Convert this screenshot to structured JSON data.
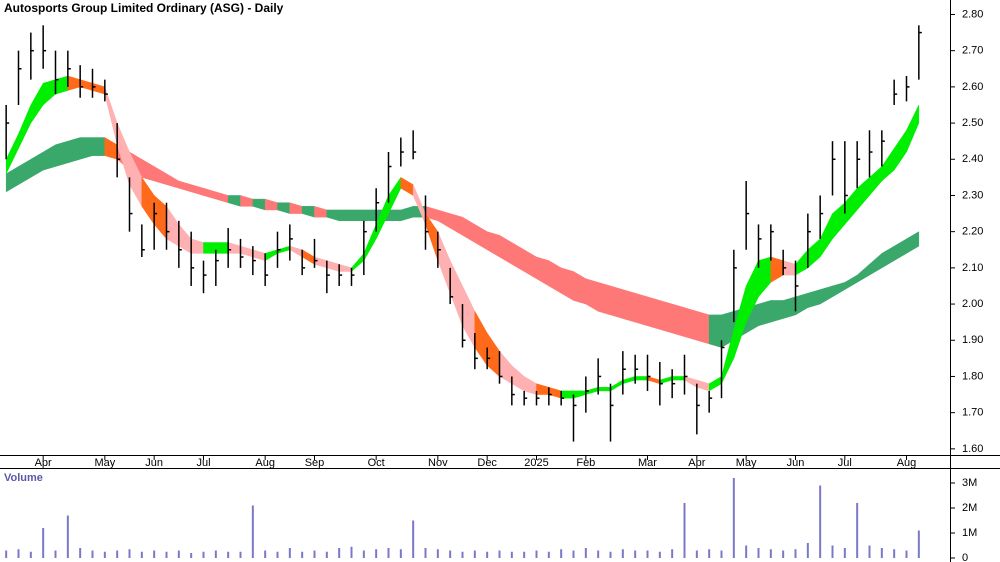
{
  "chart_data": [
    {
      "type": "ohlc",
      "title": "Autosports Group Limited Ordinary (ASG) - Daily",
      "categories": [
        null,
        null,
        null,
        "Apr",
        null,
        null,
        null,
        null,
        "May",
        null,
        null,
        null,
        "Jun",
        null,
        null,
        null,
        "Jul",
        null,
        null,
        null,
        null,
        "Aug",
        null,
        null,
        null,
        "Sep",
        null,
        null,
        null,
        null,
        "Oct",
        null,
        null,
        null,
        null,
        "Nov",
        null,
        null,
        null,
        "Dec",
        null,
        null,
        null,
        "2025",
        null,
        null,
        null,
        "Feb",
        null,
        null,
        null,
        null,
        "Mar",
        null,
        null,
        null,
        "Apr",
        null,
        null,
        null,
        "May",
        null,
        null,
        null,
        "Jun",
        null,
        null,
        null,
        "Jul",
        null,
        null,
        null,
        null,
        "Aug",
        null
      ],
      "high": [
        2.55,
        2.7,
        2.75,
        2.77,
        2.7,
        2.7,
        2.66,
        2.65,
        2.62,
        2.5,
        2.35,
        2.22,
        2.28,
        2.28,
        2.23,
        2.2,
        2.12,
        2.15,
        2.21,
        2.18,
        2.16,
        2.14,
        2.2,
        2.22,
        2.15,
        2.18,
        2.12,
        2.11,
        2.1,
        2.23,
        2.32,
        2.42,
        2.46,
        2.48,
        2.3,
        2.2,
        2.1,
        2.0,
        1.92,
        1.88,
        1.87,
        1.8,
        1.76,
        1.76,
        1.77,
        1.76,
        1.75,
        1.8,
        1.85,
        1.78,
        1.87,
        1.86,
        1.86,
        1.84,
        1.82,
        1.86,
        1.78,
        1.76,
        1.9,
        2.15,
        2.34,
        2.22,
        2.22,
        2.15,
        2.12,
        2.25,
        2.3,
        2.45,
        2.45,
        2.45,
        2.48,
        2.48,
        2.62,
        2.63,
        2.77
      ],
      "low": [
        2.4,
        2.55,
        2.62,
        2.65,
        2.58,
        2.6,
        2.57,
        2.57,
        2.56,
        2.35,
        2.2,
        2.13,
        2.15,
        2.15,
        2.1,
        2.05,
        2.03,
        2.05,
        2.1,
        2.1,
        2.08,
        2.05,
        2.1,
        2.12,
        2.08,
        2.1,
        2.03,
        2.05,
        2.05,
        2.08,
        2.2,
        2.28,
        2.38,
        2.4,
        2.15,
        2.1,
        2.0,
        1.88,
        1.82,
        1.82,
        1.78,
        1.72,
        1.72,
        1.72,
        1.72,
        1.72,
        1.62,
        1.7,
        1.75,
        1.62,
        1.75,
        1.78,
        1.76,
        1.72,
        1.74,
        1.75,
        1.64,
        1.7,
        1.74,
        1.95,
        2.15,
        2.1,
        2.12,
        2.08,
        1.98,
        2.1,
        2.18,
        2.3,
        2.25,
        2.32,
        2.35,
        2.38,
        2.55,
        2.56,
        2.62
      ],
      "close": [
        2.5,
        2.65,
        2.7,
        2.7,
        2.62,
        2.65,
        2.6,
        2.6,
        2.58,
        2.4,
        2.25,
        2.15,
        2.25,
        2.2,
        2.15,
        2.1,
        2.08,
        2.12,
        2.15,
        2.13,
        2.12,
        2.08,
        2.15,
        2.18,
        2.1,
        2.12,
        2.08,
        2.08,
        2.08,
        2.2,
        2.28,
        2.38,
        2.42,
        2.42,
        2.2,
        2.15,
        2.02,
        1.9,
        1.85,
        1.85,
        1.8,
        1.75,
        1.74,
        1.74,
        1.75,
        1.74,
        1.72,
        1.76,
        1.8,
        1.72,
        1.82,
        1.82,
        1.8,
        1.78,
        1.78,
        1.8,
        1.72,
        1.74,
        1.88,
        2.1,
        2.25,
        2.18,
        2.2,
        2.1,
        2.05,
        2.2,
        2.25,
        2.4,
        2.3,
        2.4,
        2.42,
        2.45,
        2.58,
        2.6,
        2.75
      ],
      "short_band": {
        "upper": [
          2.4,
          2.47,
          2.55,
          2.61,
          2.62,
          2.63,
          2.62,
          2.61,
          2.6,
          2.5,
          2.42,
          2.35,
          2.3,
          2.27,
          2.22,
          2.18,
          2.17,
          2.17,
          2.17,
          2.16,
          2.15,
          2.14,
          2.15,
          2.16,
          2.15,
          2.13,
          2.12,
          2.11,
          2.1,
          2.14,
          2.22,
          2.3,
          2.35,
          2.33,
          2.25,
          2.2,
          2.12,
          2.05,
          1.98,
          1.92,
          1.87,
          1.83,
          1.8,
          1.78,
          1.77,
          1.76,
          1.76,
          1.76,
          1.77,
          1.77,
          1.79,
          1.8,
          1.8,
          1.79,
          1.8,
          1.8,
          1.79,
          1.78,
          1.8,
          1.93,
          2.05,
          2.12,
          2.13,
          2.12,
          2.11,
          2.15,
          2.18,
          2.25,
          2.28,
          2.32,
          2.35,
          2.38,
          2.43,
          2.48,
          2.55
        ],
        "lower": [
          2.36,
          2.43,
          2.5,
          2.55,
          2.58,
          2.59,
          2.6,
          2.59,
          2.58,
          2.44,
          2.33,
          2.27,
          2.22,
          2.18,
          2.16,
          2.14,
          2.14,
          2.14,
          2.14,
          2.14,
          2.13,
          2.12,
          2.14,
          2.15,
          2.13,
          2.11,
          2.1,
          2.09,
          2.09,
          2.12,
          2.18,
          2.25,
          2.32,
          2.3,
          2.22,
          2.12,
          2.03,
          1.94,
          1.88,
          1.83,
          1.8,
          1.78,
          1.76,
          1.75,
          1.75,
          1.74,
          1.74,
          1.75,
          1.76,
          1.76,
          1.78,
          1.79,
          1.79,
          1.78,
          1.79,
          1.79,
          1.77,
          1.76,
          1.78,
          1.85,
          1.95,
          2.02,
          2.06,
          2.08,
          2.08,
          2.1,
          2.13,
          2.18,
          2.22,
          2.26,
          2.3,
          2.34,
          2.37,
          2.42,
          2.5
        ]
      },
      "long_band": {
        "upper": [
          2.36,
          2.38,
          2.4,
          2.42,
          2.44,
          2.45,
          2.46,
          2.46,
          2.46,
          2.44,
          2.42,
          2.4,
          2.38,
          2.36,
          2.34,
          2.33,
          2.32,
          2.31,
          2.3,
          2.3,
          2.29,
          2.29,
          2.28,
          2.28,
          2.27,
          2.27,
          2.26,
          2.26,
          2.26,
          2.26,
          2.26,
          2.26,
          2.26,
          2.27,
          2.27,
          2.26,
          2.25,
          2.24,
          2.22,
          2.2,
          2.19,
          2.17,
          2.15,
          2.13,
          2.12,
          2.1,
          2.09,
          2.07,
          2.06,
          2.05,
          2.04,
          2.03,
          2.02,
          2.01,
          2.0,
          1.99,
          1.98,
          1.97,
          1.97,
          1.98,
          1.99,
          2.0,
          2.01,
          2.01,
          2.02,
          2.03,
          2.04,
          2.05,
          2.06,
          2.08,
          2.11,
          2.14,
          2.16,
          2.18,
          2.2
        ],
        "lower": [
          2.31,
          2.33,
          2.35,
          2.37,
          2.38,
          2.39,
          2.4,
          2.41,
          2.41,
          2.4,
          2.37,
          2.35,
          2.34,
          2.33,
          2.32,
          2.31,
          2.3,
          2.29,
          2.28,
          2.27,
          2.27,
          2.26,
          2.26,
          2.25,
          2.25,
          2.24,
          2.24,
          2.23,
          2.23,
          2.23,
          2.23,
          2.23,
          2.23,
          2.24,
          2.24,
          2.23,
          2.21,
          2.19,
          2.17,
          2.15,
          2.13,
          2.11,
          2.09,
          2.07,
          2.05,
          2.03,
          2.01,
          2.0,
          1.98,
          1.97,
          1.96,
          1.95,
          1.94,
          1.93,
          1.92,
          1.91,
          1.9,
          1.89,
          1.88,
          1.9,
          1.92,
          1.94,
          1.95,
          1.96,
          1.97,
          1.99,
          2.0,
          2.02,
          2.04,
          2.06,
          2.08,
          2.1,
          2.12,
          2.14,
          2.16
        ]
      },
      "bar_color": "#000000",
      "short_colors": {
        "rising": "#00ee00",
        "falling_supported": "#ff6a1a",
        "falling": "#ffb0b0"
      },
      "long_colors": {
        "rising": "#3aa86a",
        "falling_above": "#ff6a1a",
        "falling": "#ff7878"
      },
      "ylim": [
        1.583,
        2.84
      ],
      "yticks": [
        {
          "value": 1.6,
          "label": "1.60"
        },
        {
          "value": 1.7,
          "label": "1.70"
        },
        {
          "value": 1.8,
          "label": "1.80"
        },
        {
          "value": 1.9,
          "label": "1.90"
        },
        {
          "value": 2.0,
          "label": "2.00"
        },
        {
          "value": 2.1,
          "label": "2.10"
        },
        {
          "value": 2.2,
          "label": "2.20"
        },
        {
          "value": 2.3,
          "label": "2.30"
        },
        {
          "value": 2.4,
          "label": "2.40"
        },
        {
          "value": 2.5,
          "label": "2.50"
        },
        {
          "value": 2.6,
          "label": "2.60"
        },
        {
          "value": 2.7,
          "label": "2.70"
        },
        {
          "value": 2.8,
          "label": "2.80"
        }
      ]
    },
    {
      "type": "bar",
      "title": "Volume",
      "values": [
        300000,
        350000,
        250000,
        1200000,
        300000,
        1700000,
        400000,
        300000,
        250000,
        300000,
        350000,
        250000,
        300000,
        250000,
        300000,
        200000,
        250000,
        300000,
        250000,
        250000,
        2100000,
        300000,
        250000,
        400000,
        250000,
        300000,
        250000,
        400000,
        450000,
        300000,
        350000,
        400000,
        350000,
        1500000,
        400000,
        350000,
        300000,
        250000,
        300000,
        250000,
        300000,
        250000,
        250000,
        300000,
        250000,
        350000,
        300000,
        400000,
        300000,
        250000,
        350000,
        300000,
        300000,
        250000,
        350000,
        2200000,
        300000,
        350000,
        300000,
        3200000,
        500000,
        400000,
        350000,
        300000,
        350000,
        600000,
        2900000,
        500000,
        400000,
        2200000,
        500000,
        400000,
        350000,
        300000,
        1100000
      ],
      "color": "#7b78c8",
      "ylim": [
        0,
        3520000
      ],
      "yticks": [
        {
          "value": 0,
          "label": "0"
        },
        {
          "value": 1000000,
          "label": "1M"
        },
        {
          "value": 2000000,
          "label": "2M"
        },
        {
          "value": 3000000,
          "label": "3M"
        }
      ]
    }
  ]
}
